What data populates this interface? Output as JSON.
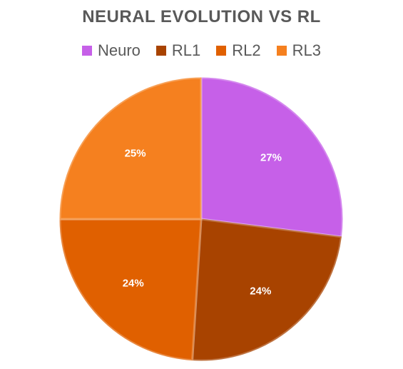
{
  "chart_data": {
    "type": "pie",
    "title": "NEURAL EVOLUTION VS RL",
    "legend_position": "top",
    "categories": [
      "Neuro",
      "RL1",
      "RL2",
      "RL3"
    ],
    "values": [
      27,
      24,
      24,
      25
    ],
    "data_labels": [
      "27%",
      "24%",
      "24%",
      "25%"
    ],
    "colors": [
      "#c660e8",
      "#a84300",
      "#e06000",
      "#f5801f"
    ]
  }
}
